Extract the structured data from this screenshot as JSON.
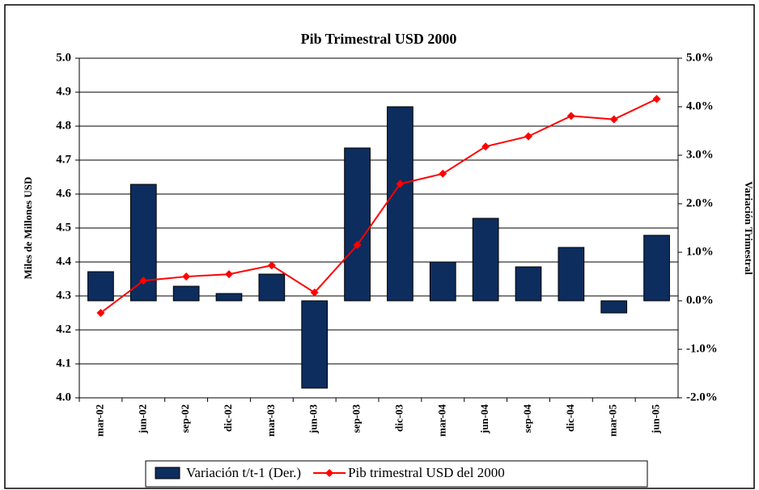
{
  "chart_data": {
    "type": "bar_line",
    "title": "Pib Trimestral USD 2000",
    "y_label": "Miles de Millones USD",
    "y2_label": "Variación Trimestral",
    "categories": [
      "mar-02",
      "jun-02",
      "sep-02",
      "dic-02",
      "mar-03",
      "jun-03",
      "sep-03",
      "dic-03",
      "mar-04",
      "jun-04",
      "sep-04",
      "dic-04",
      "mar-05",
      "jun-05"
    ],
    "series": [
      {
        "name": "Variación t/t-1 (Der.)",
        "type": "bar",
        "axis": "y2",
        "color": "#0d2d5e",
        "values": [
          0.6,
          2.4,
          0.3,
          0.15,
          0.55,
          -1.8,
          3.15,
          4.0,
          0.8,
          1.7,
          0.7,
          1.1,
          -0.25,
          1.35
        ]
      },
      {
        "name": "Pib trimestral USD del 2000",
        "type": "line",
        "axis": "y",
        "color": "#ff0000",
        "values": [
          4.25,
          4.345,
          4.357,
          4.364,
          4.39,
          4.31,
          4.45,
          4.63,
          4.66,
          4.74,
          4.77,
          4.83,
          4.82,
          4.88
        ]
      }
    ],
    "ylim": [
      4.0,
      5.0
    ],
    "yticks": [
      {
        "value": 4.0,
        "label": "4.0"
      },
      {
        "value": 4.1,
        "label": "4.1"
      },
      {
        "value": 4.2,
        "label": "4.2"
      },
      {
        "value": 4.3,
        "label": "4.3"
      },
      {
        "value": 4.4,
        "label": "4.4"
      },
      {
        "value": 4.5,
        "label": "4.5"
      },
      {
        "value": 4.6,
        "label": "4.6"
      },
      {
        "value": 4.7,
        "label": "4.7"
      },
      {
        "value": 4.8,
        "label": "4.8"
      },
      {
        "value": 4.9,
        "label": "4.9"
      },
      {
        "value": 5.0,
        "label": "5.0"
      }
    ],
    "y2lim": [
      -2.0,
      5.0
    ],
    "y2ticks": [
      {
        "value": -2.0,
        "label": "-2.0%"
      },
      {
        "value": -1.0,
        "label": "-1.0%"
      },
      {
        "value": 0.0,
        "label": "0.0%"
      },
      {
        "value": 1.0,
        "label": "1.0%"
      },
      {
        "value": 2.0,
        "label": "2.0%"
      },
      {
        "value": 3.0,
        "label": "3.0%"
      },
      {
        "value": 4.0,
        "label": "4.0%"
      },
      {
        "value": 5.0,
        "label": "5.0%"
      }
    ],
    "grid": true
  }
}
